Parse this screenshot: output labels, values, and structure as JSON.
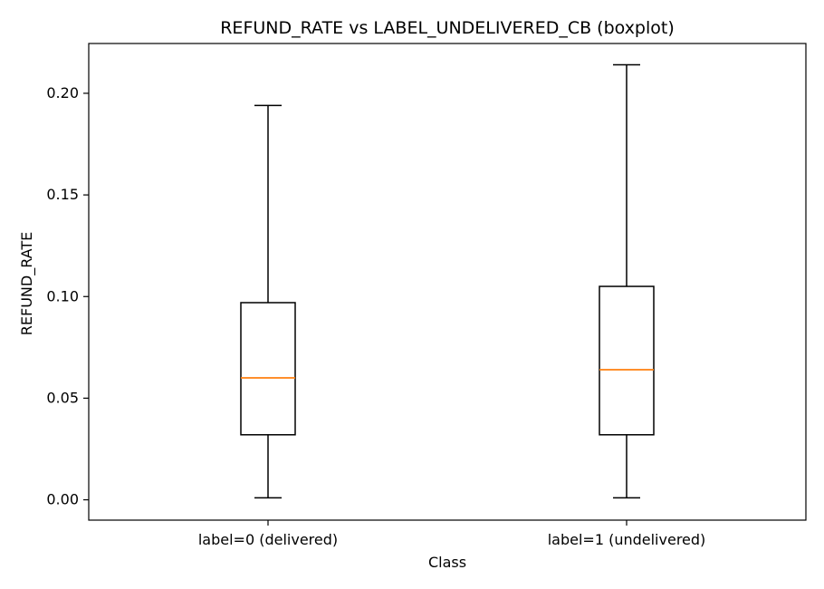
{
  "chart_data": {
    "type": "boxplot",
    "title": "REFUND_RATE vs LABEL_UNDELIVERED_CB (boxplot)",
    "xlabel": "Class",
    "ylabel": "REFUND_RATE",
    "categories": [
      "label=0 (delivered)",
      "label=1 (undelivered)"
    ],
    "boxes": [
      {
        "whisker_low": 0.001,
        "q1": 0.032,
        "median": 0.06,
        "q3": 0.097,
        "whisker_high": 0.194
      },
      {
        "whisker_low": 0.001,
        "q1": 0.032,
        "median": 0.064,
        "q3": 0.105,
        "whisker_high": 0.214
      }
    ],
    "ylim": [
      -0.01,
      0.2245
    ],
    "yticks": [
      0.0,
      0.05,
      0.1,
      0.15,
      0.2
    ],
    "ytick_labels": [
      "0.00",
      "0.05",
      "0.10",
      "0.15",
      "0.20"
    ],
    "grid": false,
    "colors": {
      "median": "#ff7f0e",
      "box": "#000000"
    }
  }
}
